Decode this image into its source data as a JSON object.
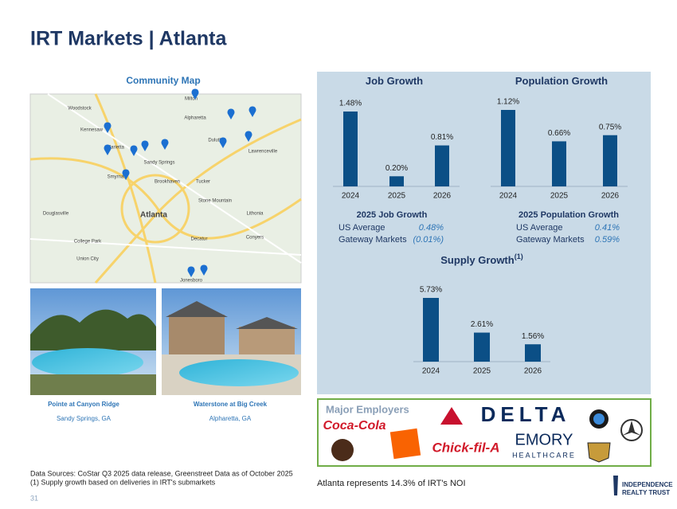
{
  "header": {
    "title": "IRT Markets | Atlanta"
  },
  "map": {
    "title": "Community Map",
    "labels": [
      "Woodstock",
      "Milton",
      "Alpharetta",
      "Kennesaw",
      "Marietta",
      "Sandy Springs",
      "Smyrna",
      "Brookhaven",
      "Tucker",
      "Lawrenceville",
      "Duluth",
      "Atlanta",
      "Decatur",
      "College Park",
      "Union City",
      "Jonesboro",
      "Lithonia",
      "Conyers",
      "Douglasville",
      "Stone Mountain"
    ]
  },
  "photos": [
    {
      "name": "Pointe at Canyon Ridge",
      "location": "Sandy Springs, GA"
    },
    {
      "name": "Waterstone at Big Creek",
      "location": "Alpharetta, GA"
    }
  ],
  "chart_data": [
    {
      "type": "bar",
      "title": "Job Growth",
      "categories": [
        "2024",
        "2025",
        "2026"
      ],
      "values": [
        1.48,
        0.2,
        0.81
      ],
      "value_labels": [
        "1.48%",
        "0.20%",
        "0.81%"
      ],
      "color": "#0b4f86"
    },
    {
      "type": "bar",
      "title": "Population Growth",
      "categories": [
        "2024",
        "2025",
        "2026"
      ],
      "values": [
        1.12,
        0.66,
        0.75
      ],
      "value_labels": [
        "1.12%",
        "0.66%",
        "0.75%"
      ],
      "color": "#0b4f86"
    },
    {
      "type": "bar",
      "title": "Supply Growth",
      "title_note": "(1)",
      "categories": [
        "2024",
        "2025",
        "2026"
      ],
      "values": [
        5.73,
        2.61,
        1.56
      ],
      "value_labels": [
        "5.73%",
        "2.61%",
        "1.56%"
      ],
      "color": "#0b4f86"
    }
  ],
  "stats": [
    {
      "title": "2025 Job Growth",
      "rows": [
        [
          "US Average",
          "0.48%"
        ],
        [
          "Gateway Markets",
          "(0.01%)"
        ]
      ]
    },
    {
      "title": "2025 Population Growth",
      "rows": [
        [
          "US Average",
          "0.41%"
        ],
        [
          "Gateway Markets",
          "0.59%"
        ]
      ]
    }
  ],
  "employers": {
    "title": "Major Employers",
    "logos": [
      "Coca-Cola",
      "ups",
      "THE HOME DEPOT",
      "Chick-fil-A",
      "DELTA",
      "EMORY",
      "HEALTHCARE"
    ]
  },
  "footnotes": [
    "Data Sources: CoStar Q3 2025 data release, Greenstreet Data as of October 2025",
    "(1)  Supply growth based on deliveries in IRT's submarkets"
  ],
  "noi_note": "Atlanta represents 14.3% of IRT's NOI",
  "page_number": "31",
  "logo": {
    "line1": "INDEPENDENCE",
    "line2": "REALTY TRUST"
  }
}
